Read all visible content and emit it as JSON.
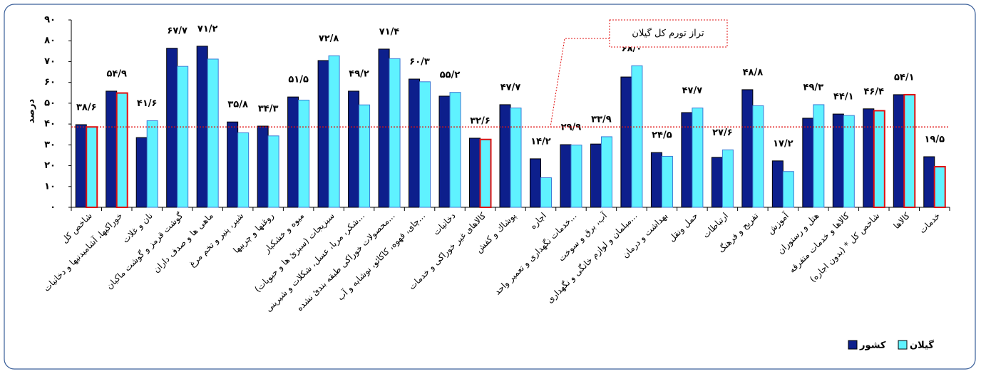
{
  "chart_data": {
    "type": "bar",
    "ylabel": "درصد",
    "categories": [
      "شاخص کل",
      "خوراکیها، آشامیدنیها و دخانیات",
      "نان و غلات",
      "گوشت قرمز و گوشت ماکیان",
      "ماهی ها و صدف داران",
      "شیر، پنیر و تخم مرغ",
      "روغنها و چربیها",
      "میوه و خشکبار",
      "سبزیجات (سبزیٔ ها و حبوبات)",
      "شکر، مربا، عسل، شکلات و شیرینی...",
      "محصولات خوراکی طبقه بندیٔ نشده...",
      "چای، قهوه، کاکائو، نوشابه و آب...",
      "دخانیات",
      "کالاهای غیر خوراکی و خدمات",
      "پوشاك و کفش",
      "اجاره",
      "خدمات نگهداری و تعمیر واحد...",
      "آب، برق و سوخت",
      "مبلمان و لوازم خانگی و نگهداری...",
      "بهداشت و درمان",
      "حمل ونقل",
      "ارتباطات",
      "تفریح و فرهنگ",
      "آموزش",
      "هتل و رستوران",
      "کالاها و خدمات متفرقه",
      "شاخص کل * (بدون اجاره)",
      "کالاها",
      "خدمات"
    ],
    "series": [
      {
        "name": "کشور",
        "color": "#0d1f8c",
        "values": [
          39.7,
          55.8,
          33.5,
          76.4,
          77.4,
          41,
          39,
          53,
          70.5,
          55.8,
          76,
          61.6,
          53.4,
          33.2,
          49.3,
          23.3,
          30.1,
          30.4,
          62.6,
          26.3,
          45.5,
          24,
          56.5,
          22.3,
          42.8,
          44.8,
          47.3,
          54.1,
          24.3
        ]
      },
      {
        "name": "گیلان",
        "color": "#5ff2ff",
        "values": [
          38.6,
          54.9,
          41.6,
          67.7,
          71.2,
          35.8,
          34.3,
          51.5,
          72.8,
          49.2,
          71.4,
          60.3,
          55.2,
          32.6,
          47.7,
          14.2,
          29.9,
          33.9,
          68.0,
          24.5,
          47.7,
          27.6,
          48.8,
          17.2,
          49.3,
          44.1,
          46.4,
          54.1,
          19.5
        ],
        "value_labels": [
          "۳۸/۶",
          "۵۴/۹",
          "۴۱/۶",
          "۶۷/۷",
          "۷۱/۲",
          "۳۵/۸",
          "۳۴/۳",
          "۵۱/۵",
          "۷۲/۸",
          "۴۹/۲",
          "۷۱/۴",
          "۶۰/۳",
          "۵۵/۲",
          "۳۲/۶",
          "۴۷/۷",
          "۱۴/۲",
          "۲۹/۹",
          "۳۳/۹",
          "۶۸/۰",
          "۲۴/۵",
          "۴۷/۷",
          "۲۷/۶",
          "۴۸/۸",
          "۱۷/۲",
          "۴۹/۳",
          "۴۴/۱",
          "۴۶/۴",
          "۵۴/۱",
          "۱۹/۵"
        ],
        "edgecolors": [
          "#e01010",
          "#e01010",
          "#3a7bd5",
          "#3a7bd5",
          "#3a7bd5",
          "#3a7bd5",
          "#3a7bd5",
          "#3a7bd5",
          "#3a7bd5",
          "#3a7bd5",
          "#3a7bd5",
          "#3a7bd5",
          "#3a7bd5",
          "#e01010",
          "#3a7bd5",
          "#3a7bd5",
          "#3a7bd5",
          "#3a7bd5",
          "#3a7bd5",
          "#3a7bd5",
          "#3a7bd5",
          "#3a7bd5",
          "#3a7bd5",
          "#3a7bd5",
          "#3a7bd5",
          "#3a7bd5",
          "#e01010",
          "#e01010",
          "#e01010"
        ]
      }
    ],
    "reference_line": {
      "value": 38.6,
      "label": "تراز تورم کل گیلان",
      "color": "#e01010"
    },
    "ylim": [
      0,
      90
    ],
    "yticks": [
      {
        "value": 0,
        "label": "۰"
      },
      {
        "value": 10,
        "label": "۱۰"
      },
      {
        "value": 20,
        "label": "۲۰"
      },
      {
        "value": 30,
        "label": "۳۰"
      },
      {
        "value": 40,
        "label": "۴۰"
      },
      {
        "value": 50,
        "label": "۵۰"
      },
      {
        "value": 60,
        "label": "۶۰"
      },
      {
        "value": 70,
        "label": "۷۰"
      },
      {
        "value": 80,
        "label": "۸۰"
      },
      {
        "value": 90,
        "label": "۹۰"
      }
    ],
    "grid": false,
    "legend": "lower right"
  }
}
